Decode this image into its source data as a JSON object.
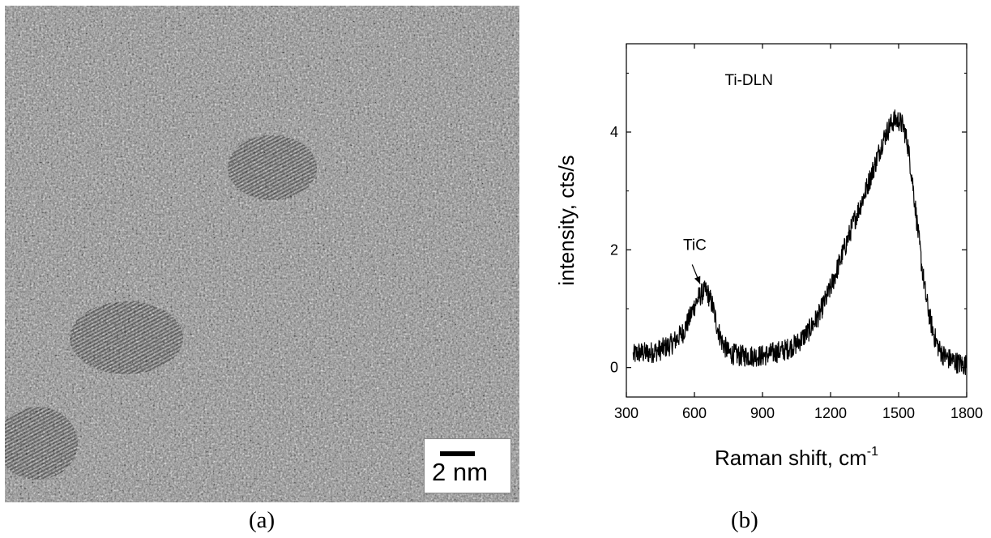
{
  "panel_a": {
    "scale_bar_label": "2 nm",
    "caption": "(a)"
  },
  "panel_b": {
    "caption": "(b)"
  },
  "chart_data": {
    "type": "line",
    "title": "Ti-DLN",
    "xlabel": "Raman shift, cm",
    "xlabel_superscript": "-1",
    "ylabel": "intensity, cts/s",
    "xlim": [
      300,
      1800
    ],
    "ylim": [
      -0.5,
      5.5
    ],
    "xticks": [
      300,
      600,
      900,
      1200,
      1500,
      1800
    ],
    "yticks": [
      0,
      2,
      4
    ],
    "grid": false,
    "annotations": [
      {
        "text": "TiC",
        "arrow_to": {
          "x": 645,
          "y": 1.3
        }
      }
    ],
    "series": [
      {
        "x": [
          330,
          350,
          400,
          450,
          500,
          550,
          580,
          600,
          620,
          640,
          650,
          660,
          680,
          700,
          720,
          750,
          800,
          850,
          900,
          950,
          1000,
          1050,
          1100,
          1150,
          1200,
          1250,
          1300,
          1350,
          1400,
          1430,
          1460,
          1480,
          1500,
          1520,
          1540,
          1560,
          1580,
          1600,
          1620,
          1640,
          1660,
          1680,
          1700,
          1720,
          1750,
          1780,
          1800
        ],
        "values": [
          0.2,
          0.25,
          0.25,
          0.3,
          0.4,
          0.6,
          0.85,
          1.05,
          1.2,
          1.28,
          1.3,
          1.25,
          1.05,
          0.7,
          0.45,
          0.25,
          0.2,
          0.2,
          0.2,
          0.25,
          0.3,
          0.4,
          0.6,
          0.9,
          1.35,
          1.9,
          2.45,
          2.95,
          3.5,
          3.85,
          4.1,
          4.2,
          4.2,
          4.1,
          3.8,
          3.2,
          2.5,
          1.8,
          1.2,
          0.8,
          0.5,
          0.3,
          0.2,
          0.15,
          0.1,
          0.05,
          0.05
        ]
      }
    ]
  }
}
